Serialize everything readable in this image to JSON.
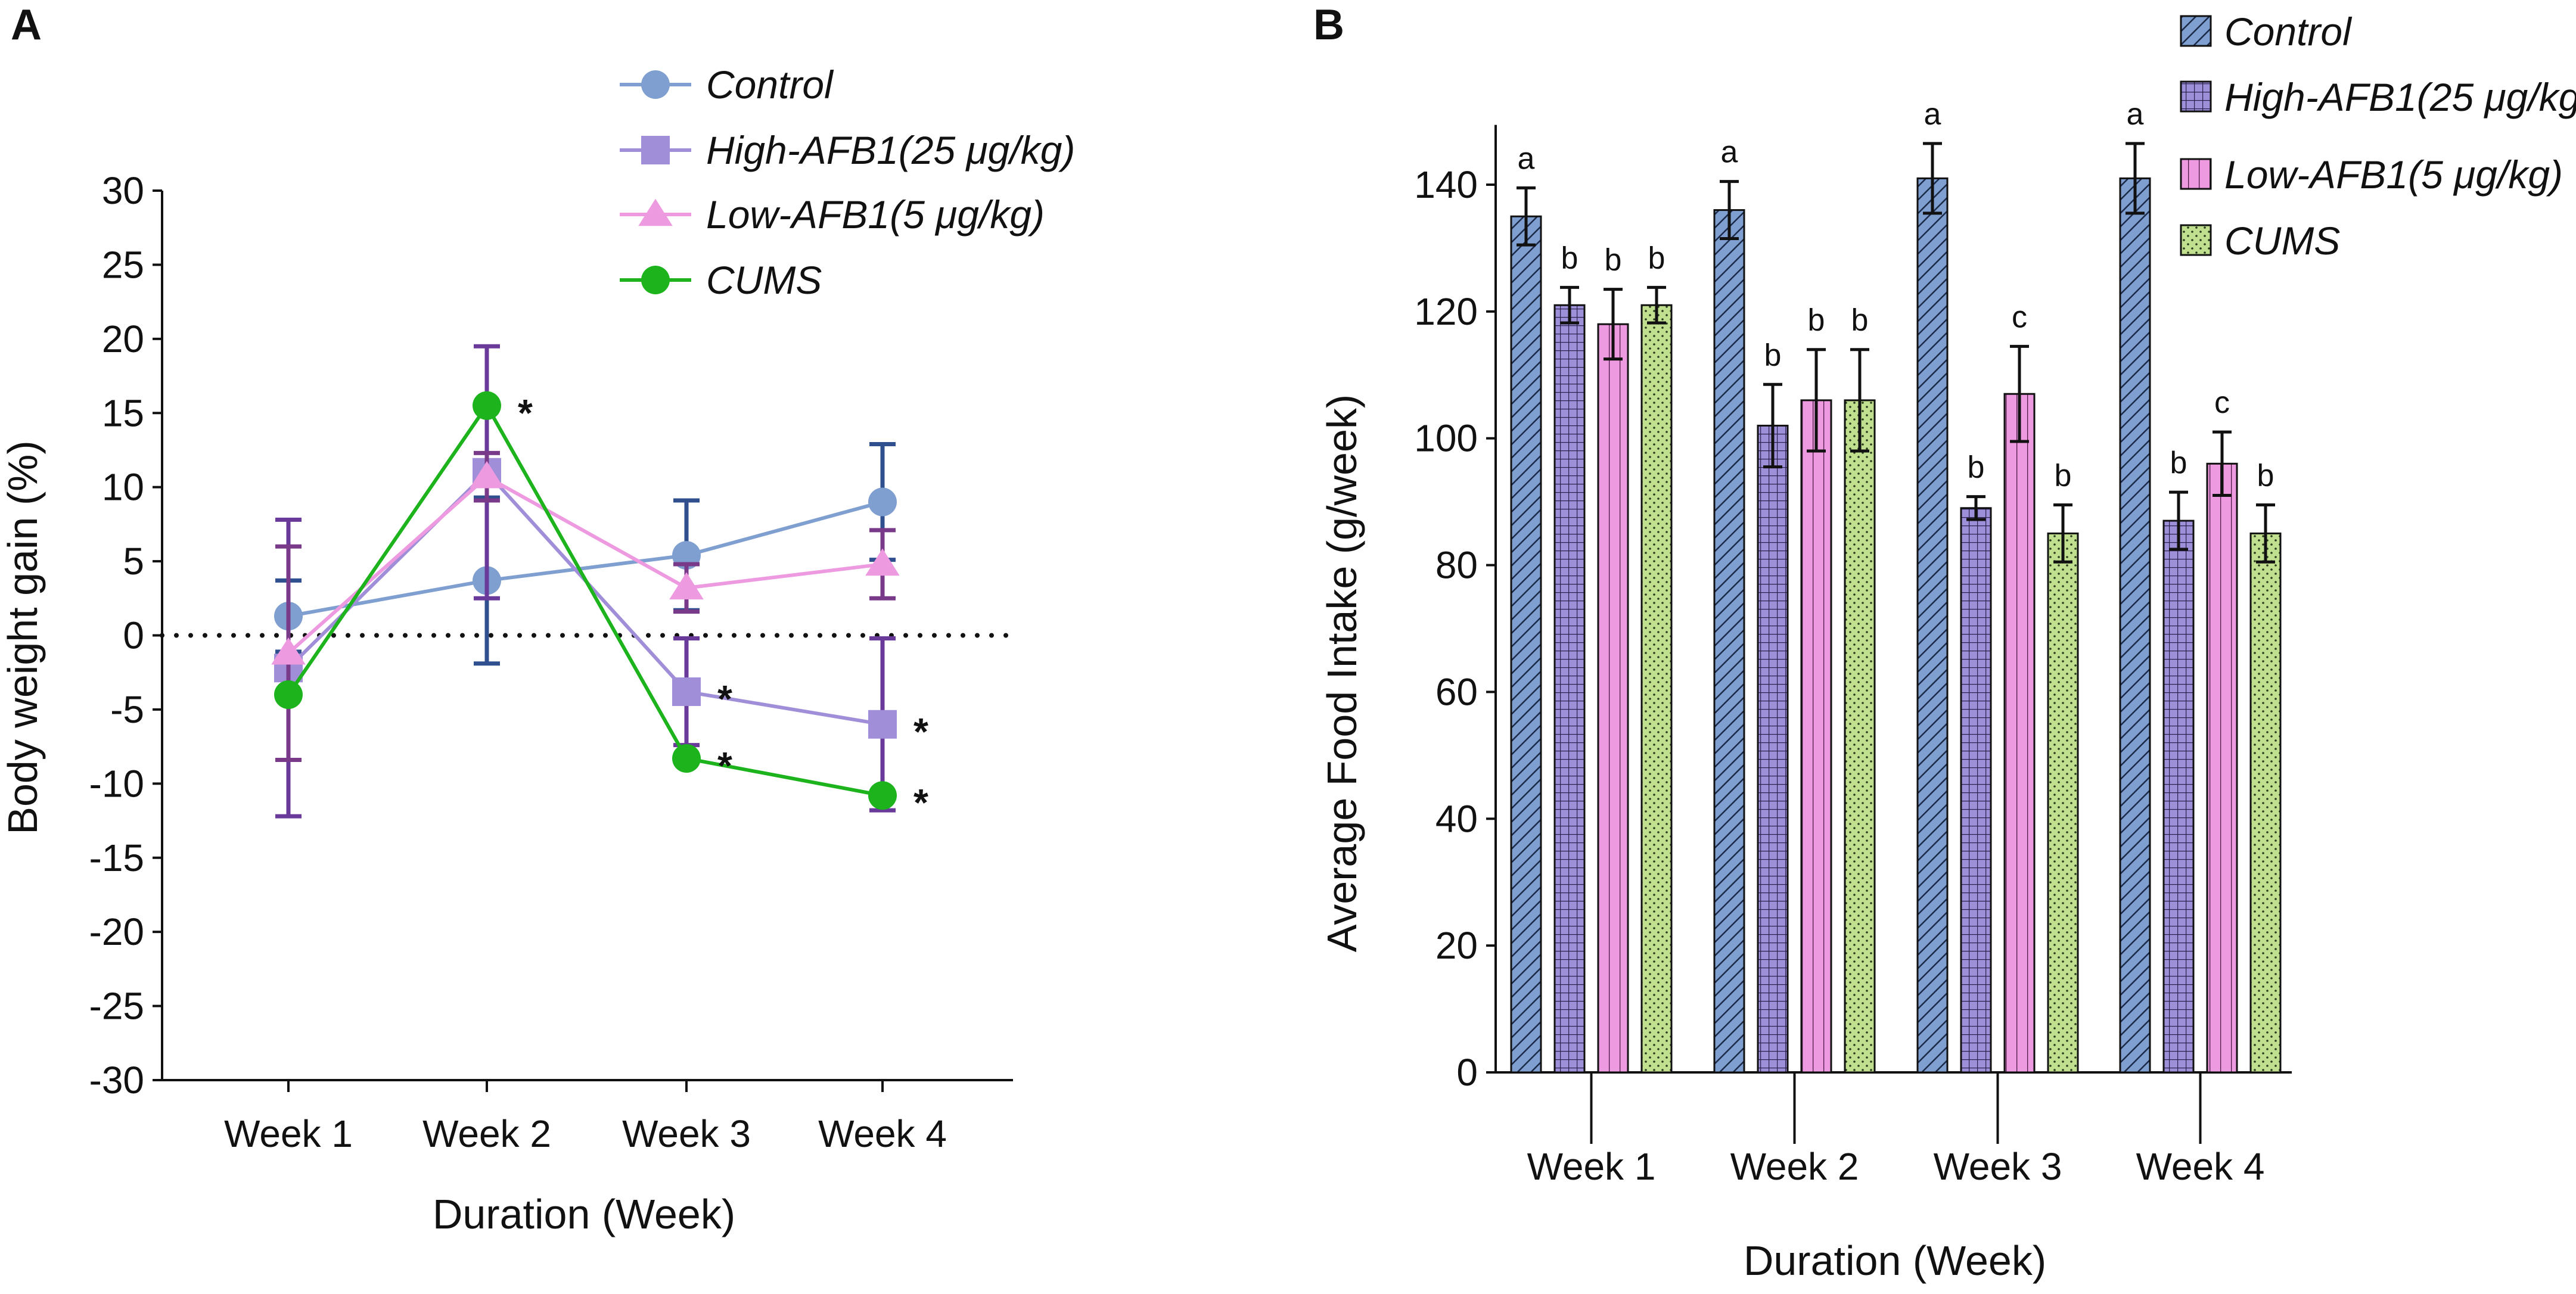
{
  "chart_data": [
    {
      "panel": "A",
      "type": "line",
      "title": "",
      "xlabel": "Duration (Week)",
      "ylabel": "Body weight gain   (%)",
      "categories": [
        "Week 1",
        "Week 2",
        "Week 3",
        "Week 4"
      ],
      "ylim": [
        -30,
        30
      ],
      "yticks": [
        30,
        25,
        20,
        15,
        10,
        5,
        0,
        -5,
        -10,
        -15,
        -20,
        -25,
        -30
      ],
      "reference_line": 0,
      "series": [
        {
          "name": "Control",
          "color": "#7f9fd0",
          "error_color": "#2f4f8f",
          "marker": "circle",
          "values": [
            1.3,
            3.7,
            5.4,
            9.0
          ],
          "errors": [
            2.4,
            5.6,
            3.7,
            3.9
          ],
          "significant": [
            false,
            false,
            false,
            false
          ]
        },
        {
          "name": "High-AFB1(25 μg/kg)",
          "color": "#a08fd8",
          "error_color": "#6a3a9a",
          "marker": "square",
          "values": [
            -2.2,
            11.0,
            -3.8,
            -6.0
          ],
          "errors": [
            10.0,
            8.5,
            3.6,
            5.8
          ],
          "significant": [
            false,
            false,
            true,
            true
          ]
        },
        {
          "name": "Low-AFB1(5 μg/kg)",
          "color": "#ee9ae0",
          "error_color": "#7a3a8a",
          "marker": "triangle",
          "values": [
            -1.2,
            10.7,
            3.2,
            4.8
          ],
          "errors": [
            7.2,
            1.6,
            1.6,
            2.3
          ],
          "significant": [
            false,
            false,
            false,
            false
          ]
        },
        {
          "name": "CUMS",
          "color": "#1db31d",
          "error_color": "#1a7a1a",
          "marker": "circle",
          "values": [
            -4.0,
            15.5,
            -8.3,
            -10.8
          ],
          "errors": [
            0.0,
            0.0,
            0.0,
            0.0
          ],
          "significant": [
            false,
            true,
            true,
            true
          ]
        }
      ]
    },
    {
      "panel": "B",
      "type": "bar",
      "title": "",
      "xlabel": "Duration (Week)",
      "ylabel": "Average Food Intake  (g/week)",
      "categories": [
        "Week 1",
        "Week 2",
        "Week 3",
        "Week 4"
      ],
      "ylim": [
        0,
        150
      ],
      "yticks": [
        0,
        20,
        40,
        60,
        80,
        100,
        120,
        140
      ],
      "series": [
        {
          "name": "Control",
          "fill": "#7f9fd0",
          "pattern": "diagonal",
          "values": [
            135,
            136,
            141,
            141
          ],
          "errors": [
            4.5,
            4.5,
            5.5,
            5.5
          ],
          "letters": [
            "a",
            "a",
            "a",
            "a"
          ]
        },
        {
          "name": "High-AFB1(25 μg/kg)",
          "fill": "#9d8fd8",
          "pattern": "grid",
          "values": [
            121,
            102,
            89,
            87
          ],
          "errors": [
            2.8,
            6.5,
            1.8,
            4.5
          ],
          "letters": [
            "b",
            "b",
            "b",
            "b"
          ]
        },
        {
          "name": "Low-AFB1(5 μg/kg)",
          "fill": "#ee9ae0",
          "pattern": "vertical",
          "values": [
            118,
            106,
            107,
            96
          ],
          "errors": [
            5.5,
            8.0,
            7.5,
            5.0
          ],
          "letters": [
            "b",
            "b",
            "c",
            "c"
          ]
        },
        {
          "name": "CUMS",
          "fill": "#c0e090",
          "pattern": "dots",
          "values": [
            121,
            106,
            85,
            85
          ],
          "errors": [
            2.8,
            8.0,
            4.5,
            4.5
          ],
          "letters": [
            "b",
            "b",
            "b",
            "b"
          ]
        }
      ]
    }
  ],
  "labels": {
    "panel_a": "A",
    "panel_b": "B",
    "star": "*"
  }
}
